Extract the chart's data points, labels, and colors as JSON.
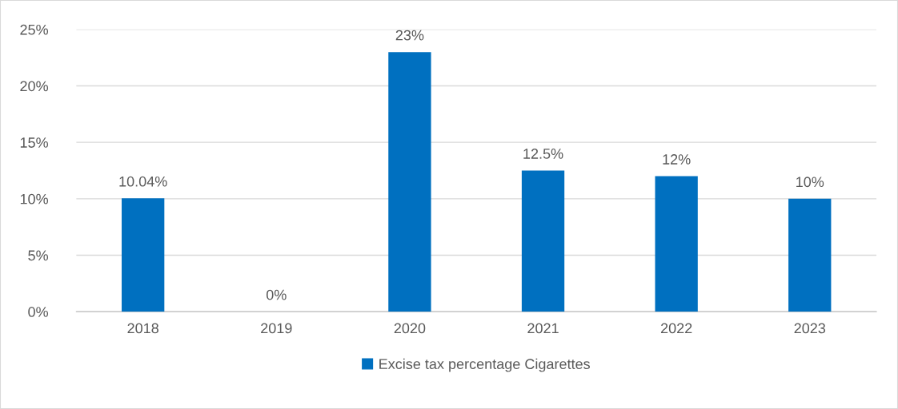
{
  "chart_data": {
    "type": "bar",
    "categories": [
      "2018",
      "2019",
      "2020",
      "2021",
      "2022",
      "2023"
    ],
    "series": [
      {
        "name": "Excise tax percentage Cigarettes",
        "color": "#0070c0",
        "values": [
          10.04,
          0,
          23,
          12.5,
          12,
          10
        ],
        "value_labels": [
          "10.04%",
          "0%",
          "23%",
          "12.5%",
          "12%",
          "10%"
        ]
      }
    ],
    "ylim": [
      0,
      25
    ],
    "yticks": [
      {
        "value": 0,
        "label": "0%"
      },
      {
        "value": 5,
        "label": "5%"
      },
      {
        "value": 10,
        "label": "10%"
      },
      {
        "value": 15,
        "label": "15%"
      },
      {
        "value": 20,
        "label": "20%"
      },
      {
        "value": 25,
        "label": "25%"
      }
    ],
    "grid": "y",
    "legend": "bottom"
  }
}
